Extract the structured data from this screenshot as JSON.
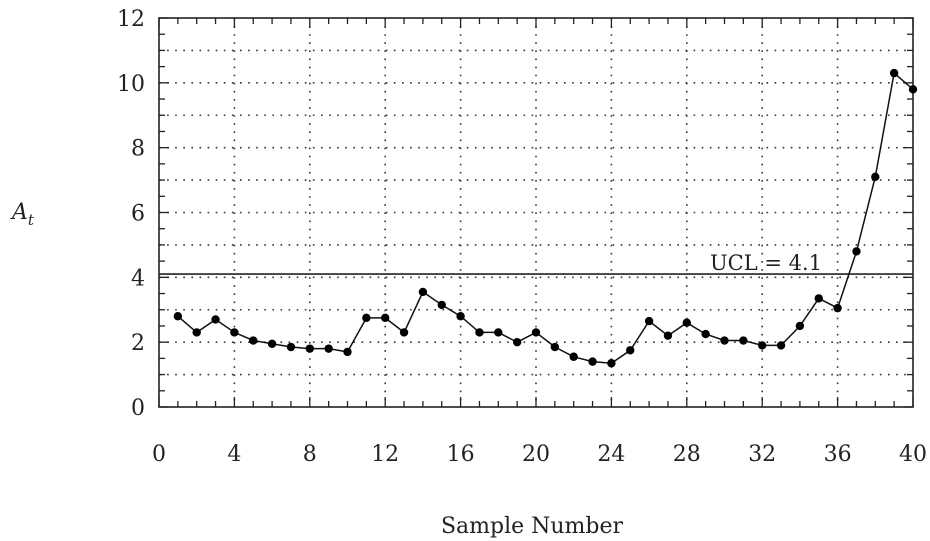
{
  "chart_data": {
    "type": "line",
    "title": "",
    "xlabel": "Sample Number",
    "ylabel": "A",
    "ylabel_subscript": "t",
    "xlim": [
      0,
      40
    ],
    "ylim": [
      0,
      12
    ],
    "x_ticks": [
      0,
      4,
      8,
      12,
      16,
      20,
      24,
      28,
      32,
      36,
      40
    ],
    "x_tick_labels": [
      "0",
      "4",
      "8",
      "12",
      "16",
      "20",
      "24",
      "28",
      "32",
      "36",
      "40"
    ],
    "y_ticks": [
      0,
      2,
      4,
      6,
      8,
      10,
      12
    ],
    "y_tick_labels": [
      "0",
      "2",
      "4",
      "6",
      "8",
      "10",
      "12"
    ],
    "grid": true,
    "grid_style": "dotted",
    "reference_line": {
      "y": 4.1,
      "label": "UCL = 4.1"
    },
    "series": [
      {
        "marker": "circle",
        "color": "#000000",
        "x": [
          1,
          2,
          3,
          4,
          5,
          6,
          7,
          8,
          9,
          10,
          11,
          12,
          13,
          14,
          15,
          16,
          17,
          18,
          19,
          20,
          21,
          22,
          23,
          24,
          25,
          26,
          27,
          28,
          29,
          30,
          31,
          32,
          33,
          34,
          35,
          36,
          37,
          38,
          39,
          40
        ],
        "values": [
          2.8,
          2.3,
          2.7,
          2.3,
          2.05,
          1.95,
          1.85,
          1.8,
          1.8,
          1.7,
          2.75,
          2.75,
          2.3,
          3.55,
          3.15,
          2.8,
          2.3,
          2.3,
          2.0,
          2.3,
          1.85,
          1.55,
          1.4,
          1.35,
          1.75,
          2.65,
          2.2,
          2.6,
          2.25,
          2.05,
          2.05,
          1.9,
          1.9,
          2.5,
          3.35,
          3.05,
          4.8,
          7.1,
          10.3,
          9.8
        ]
      }
    ]
  }
}
